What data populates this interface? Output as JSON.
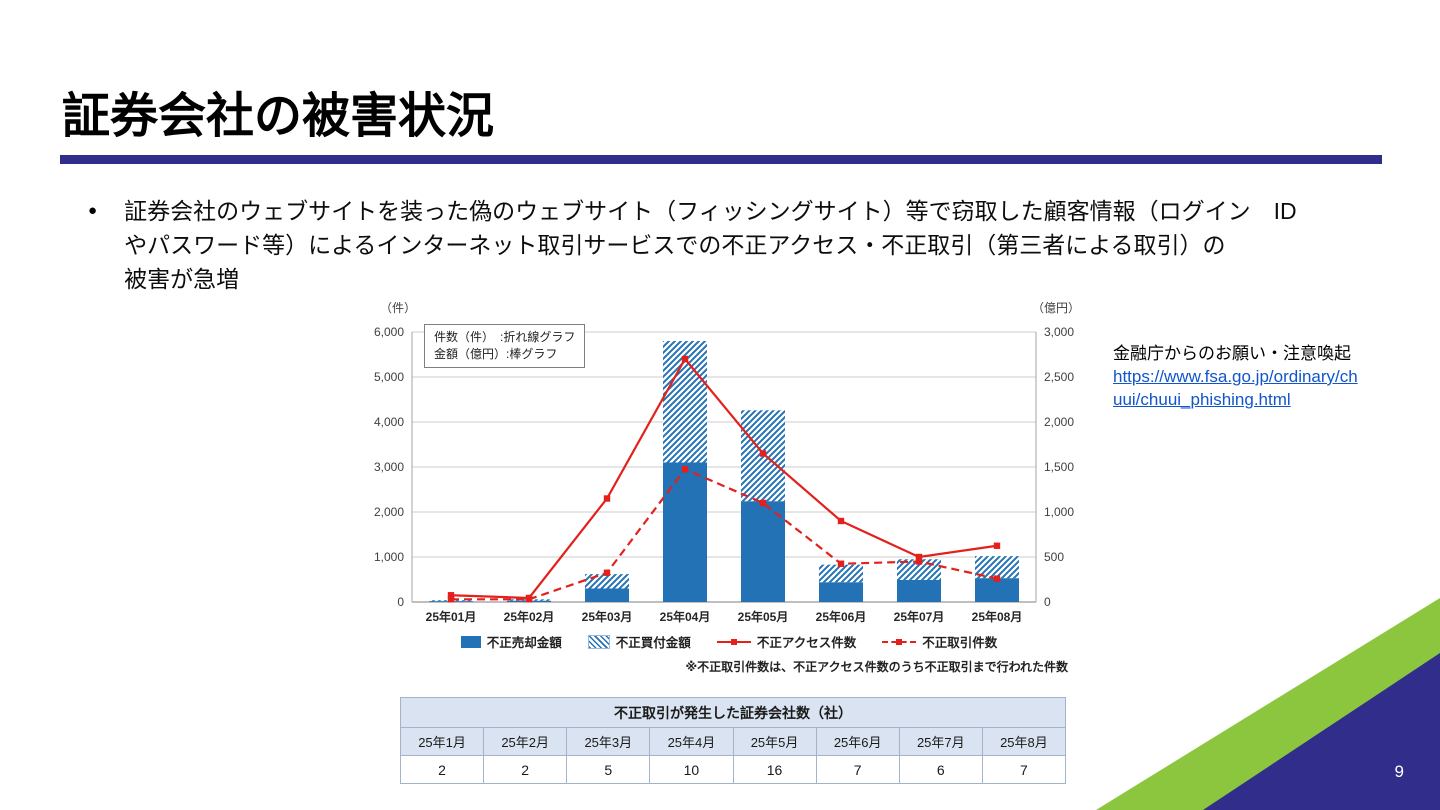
{
  "slide": {
    "title": "証券会社の被害状況",
    "page_number": "9",
    "accent_color": "#312d8a",
    "green_color": "#8cc63f"
  },
  "bullet": {
    "lines": [
      "証券会社のウェブサイトを装った偽のウェブサイト（フィッシングサイト）等で窃取した顧客情報（ログイン　ID",
      "やパスワード等）によるインターネット取引サービスでの不正アクセス・不正取引（第三者による取引）の",
      "被害が急増"
    ]
  },
  "annotation": {
    "heading": "金融庁からのお願い・注意喚起",
    "link_line1": "https://www.fsa.go.jp/ordinary/ch",
    "link_line2": "uui/chuui_phishing.html"
  },
  "chart_data": {
    "type": "bar",
    "subtype": "stacked-bar-with-lines-combo",
    "categories": [
      "25年01月",
      "25年02月",
      "25年03月",
      "25年04月",
      "25年05月",
      "25年06月",
      "25年07月",
      "25年08月"
    ],
    "bar_series": [
      {
        "name": "不正売却金額",
        "style": "solid",
        "color": "#2272b5",
        "axis": "right",
        "unit": "億円",
        "values": [
          10,
          15,
          150,
          1550,
          1120,
          220,
          245,
          265
        ]
      },
      {
        "name": "不正買付金額",
        "style": "hatched",
        "color": "#2272b5",
        "axis": "right",
        "unit": "億円",
        "values": [
          10,
          15,
          160,
          1350,
          1010,
          195,
          230,
          245
        ]
      }
    ],
    "line_series": [
      {
        "name": "不正アクセス件数",
        "style": "solid",
        "color": "#e3211c",
        "axis": "left",
        "unit": "件",
        "values": [
          150,
          90,
          2300,
          5400,
          3300,
          1800,
          1000,
          1250
        ]
      },
      {
        "name": "不正取引件数",
        "style": "dashed",
        "color": "#e3211c",
        "axis": "left",
        "unit": "件",
        "values": [
          60,
          60,
          650,
          2950,
          2200,
          850,
          900,
          520
        ]
      }
    ],
    "left_axis": {
      "title": "（件）",
      "min": 0,
      "max": 6000,
      "step": 1000,
      "labels": [
        "0",
        "1,000",
        "2,000",
        "3,000",
        "4,000",
        "5,000",
        "6,000"
      ]
    },
    "right_axis": {
      "title": "（億円）",
      "min": 0,
      "max": 3000,
      "step": 500,
      "labels": [
        "0",
        "500",
        "1,000",
        "1,500",
        "2,000",
        "2,500",
        "3,000"
      ]
    },
    "inner_legend": [
      "件数（件）　:折れ線グラフ",
      "金額（億円）:棒グラフ"
    ],
    "note": "※不正取引件数は、不正アクセス件数のうち不正取引まで行われた件数",
    "grid": true,
    "legend_position": "bottom"
  },
  "table": {
    "title": "不正取引が発生した証券会社数（社）",
    "headers": [
      "25年1月",
      "25年2月",
      "25年3月",
      "25年4月",
      "25年5月",
      "25年6月",
      "25年7月",
      "25年8月"
    ],
    "values": [
      "2",
      "2",
      "5",
      "10",
      "16",
      "7",
      "6",
      "7"
    ]
  }
}
